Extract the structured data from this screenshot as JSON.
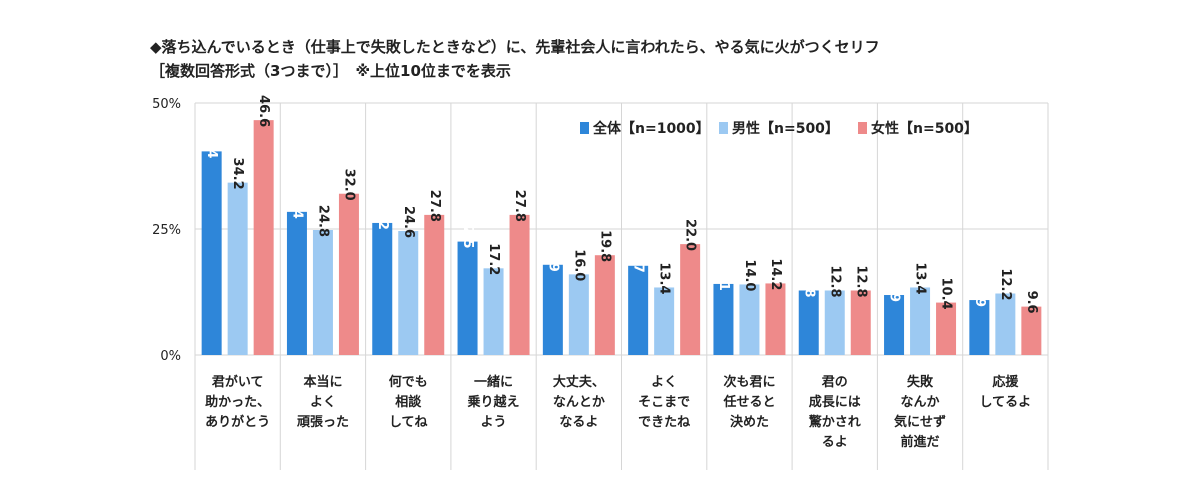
{
  "header": {
    "title": "◆落ち込んでいるとき（仕事上で失敗したときなど）に、先輩社会人に言われたら、やる気に火がつくセリフ",
    "subtitle": "［複数回答形式（3つまで）］　※上位10位までを表示"
  },
  "colors": {
    "all": "#2e86d9",
    "male": "#9cc9f2",
    "female": "#ee8a8a",
    "grid": "#d6d6d6"
  },
  "chart_data": {
    "type": "bar",
    "ylim": [
      0,
      50
    ],
    "yticks": [
      "0%",
      "25%",
      "50%"
    ],
    "grid": true,
    "legend_position": "top-right",
    "categories": [
      [
        "君がいて",
        "助かった、",
        "ありがとう"
      ],
      [
        "本当に",
        "よく",
        "頑張った"
      ],
      [
        "何でも",
        "相談",
        "してね"
      ],
      [
        "一緒に",
        "乗り越え",
        "よう"
      ],
      [
        "大丈夫、",
        "なんとか",
        "なるよ"
      ],
      [
        "よく",
        "そこまで",
        "できたね"
      ],
      [
        "次も君に",
        "任せると",
        "決めた"
      ],
      [
        "君の",
        "成長には",
        "驚かされ",
        "るよ"
      ],
      [
        "失敗",
        "なんか",
        "気にせず",
        "前進だ"
      ],
      [
        "応援",
        "してるよ"
      ]
    ],
    "series": [
      {
        "name": "全体【n=1000】",
        "values": [
          40.4,
          28.4,
          26.2,
          22.5,
          17.9,
          17.7,
          14.1,
          12.8,
          11.9,
          10.9
        ]
      },
      {
        "name": "男性【n=500】",
        "values": [
          34.2,
          24.8,
          24.6,
          17.2,
          16.0,
          13.4,
          14.0,
          12.8,
          13.4,
          12.2
        ]
      },
      {
        "name": "女性【n=500】",
        "values": [
          46.6,
          32.0,
          27.8,
          27.8,
          19.8,
          22.0,
          14.2,
          12.8,
          10.4,
          9.6
        ]
      }
    ]
  }
}
